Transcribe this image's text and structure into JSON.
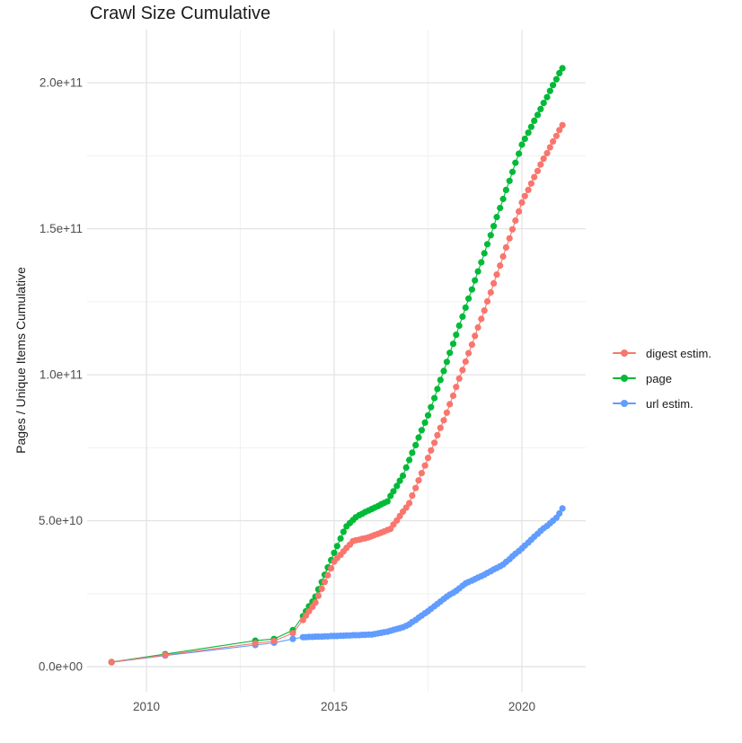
{
  "title": "Crawl Size Cumulative",
  "axes": {
    "y_title": "Pages / Unique Items Cumulative",
    "x_tick_labels": [
      "2010",
      "2015",
      "2020"
    ],
    "y_tick_labels": [
      "0.0e+00",
      "5.0e+10",
      "1.0e+11",
      "1.5e+11",
      "2.0e+11"
    ]
  },
  "legend": {
    "items": [
      {
        "label": "digest estim.",
        "color": "#F8766D"
      },
      {
        "label": "page",
        "color": "#00BA38"
      },
      {
        "label": "url estim.",
        "color": "#619CFF"
      }
    ]
  },
  "chart_data": {
    "type": "line",
    "title": "Crawl Size Cumulative",
    "xlabel": "",
    "ylabel": "Pages / Unique Items Cumulative",
    "legend_position": "right",
    "grid": true,
    "point_markers": true,
    "value_unit": "1e9 pages (values below are billions)",
    "x_major_breaks": [
      2010,
      2015,
      2020
    ],
    "x_minor_breaks": [
      2012.5,
      2017.5,
      2022.5
    ],
    "y_major_breaks_e9": [
      0,
      50,
      100,
      150,
      200
    ],
    "y_minor_breaks_e9": [
      25,
      75,
      125,
      175
    ],
    "x_range_shown": [
      2008.42,
      2021.7
    ],
    "y_range_shown_e9": [
      -8.6,
      218.2
    ],
    "x": [
      2009.07,
      2010.5,
      2012.9,
      2013.4,
      2013.9,
      2014.17,
      2014.25,
      2014.33,
      2014.42,
      2014.5,
      2014.58,
      2014.67,
      2014.75,
      2014.83,
      2014.92,
      2015,
      2015.08,
      2015.17,
      2015.25,
      2015.33,
      2015.42,
      2015.5,
      2015.58,
      2015.67,
      2015.75,
      2015.83,
      2015.92,
      2016,
      2016.08,
      2016.17,
      2016.25,
      2016.33,
      2016.42,
      2016.5,
      2016.58,
      2016.67,
      2016.75,
      2016.83,
      2016.92,
      2017,
      2017.08,
      2017.17,
      2017.25,
      2017.33,
      2017.42,
      2017.5,
      2017.58,
      2017.67,
      2017.75,
      2017.83,
      2017.92,
      2018,
      2018.08,
      2018.17,
      2018.25,
      2018.33,
      2018.42,
      2018.5,
      2018.58,
      2018.67,
      2018.75,
      2018.83,
      2018.92,
      2019,
      2019.08,
      2019.17,
      2019.25,
      2019.33,
      2019.42,
      2019.5,
      2019.58,
      2019.67,
      2019.75,
      2019.83,
      2019.92,
      2020,
      2020.08,
      2020.17,
      2020.25,
      2020.33,
      2020.42,
      2020.5,
      2020.58,
      2020.67,
      2020.75,
      2020.83,
      2020.92,
      2021,
      2021.08
    ],
    "series": [
      {
        "name": "digest estim.",
        "color": "#F8766D",
        "values": [
          1.6,
          4,
          8,
          8.8,
          11.5,
          16,
          17.5,
          19,
          20.5,
          22,
          24.3,
          26.7,
          29,
          31.3,
          33.7,
          36,
          37.2,
          38.3,
          39.5,
          40.7,
          41.8,
          43,
          43.3,
          43.5,
          43.8,
          44,
          44.3,
          44.7,
          45.1,
          45.5,
          45.9,
          46.3,
          46.8,
          47.2,
          48.7,
          50.1,
          51.6,
          53.1,
          54.5,
          56,
          58.6,
          61.2,
          63.8,
          66.3,
          68.9,
          71.5,
          74.1,
          76.7,
          79.3,
          81.8,
          84.4,
          87,
          89.9,
          92.8,
          95.8,
          98.7,
          101.6,
          104.5,
          107.4,
          110.3,
          113.3,
          116.2,
          119.1,
          122,
          125.1,
          128.2,
          131.3,
          134.3,
          137.4,
          140.5,
          143.6,
          146.7,
          149.8,
          152.8,
          155.9,
          159,
          161.2,
          163.3,
          165.5,
          167.7,
          169.8,
          172,
          174,
          175.9,
          177.9,
          179.9,
          181.8,
          183.8,
          185.5
        ]
      },
      {
        "name": "page",
        "color": "#00BA38",
        "values": [
          1.6,
          4.3,
          8.9,
          9.5,
          12.5,
          17.3,
          19,
          20.7,
          22.3,
          24,
          26.5,
          29,
          31.5,
          34,
          36.5,
          39,
          41.3,
          43.9,
          46.2,
          48.1,
          49.2,
          50.2,
          51.2,
          51.9,
          52.4,
          53,
          53.5,
          54,
          54.5,
          55,
          55.6,
          56.1,
          56.6,
          58.5,
          60.1,
          61.9,
          63.7,
          65.4,
          68.2,
          70.8,
          73.3,
          75.9,
          78.5,
          81,
          83.6,
          86.1,
          88.9,
          92,
          95.1,
          98.2,
          101.3,
          104.4,
          107.5,
          110.6,
          113.7,
          116.8,
          119.9,
          123,
          126.1,
          129.2,
          132.3,
          135.4,
          138.5,
          141.6,
          144.7,
          147.8,
          150.9,
          154,
          157.1,
          160.2,
          163.3,
          166.4,
          169.5,
          172.6,
          175.7,
          178.8,
          180.8,
          182.9,
          184.9,
          187,
          189,
          191,
          193.1,
          195.1,
          197.2,
          199.2,
          201.2,
          203.3,
          205
        ]
      },
      {
        "name": "url estim.",
        "color": "#619CFF",
        "values": [
          1.5,
          3.8,
          7.4,
          8.2,
          9.5,
          10.1,
          10.1,
          10.2,
          10.2,
          10.3,
          10.3,
          10.3,
          10.4,
          10.4,
          10.5,
          10.5,
          10.5,
          10.6,
          10.6,
          10.7,
          10.7,
          10.8,
          10.8,
          10.8,
          10.9,
          10.9,
          11,
          11,
          11.2,
          11.4,
          11.6,
          11.8,
          12,
          12.3,
          12.6,
          12.9,
          13.2,
          13.5,
          14,
          14.5,
          15.3,
          16,
          16.8,
          17.5,
          18.3,
          19,
          19.8,
          20.7,
          21.5,
          22.3,
          23.2,
          24,
          24.7,
          25.3,
          26,
          26.8,
          27.7,
          28.5,
          29,
          29.5,
          30,
          30.5,
          31,
          31.5,
          32.1,
          32.7,
          33.3,
          33.8,
          34.4,
          35,
          35.9,
          36.8,
          37.8,
          38.7,
          39.6,
          40.5,
          41.5,
          42.5,
          43.5,
          44.5,
          45.5,
          46.5,
          47.4,
          48.2,
          49.1,
          50,
          51,
          52.5,
          54.2
        ]
      }
    ]
  },
  "colors": {
    "grid_major": "#e4e4e4",
    "grid_minor": "#f1f1f1",
    "tick_text": "#4d4d4d",
    "title_text": "#1a1a1a"
  }
}
